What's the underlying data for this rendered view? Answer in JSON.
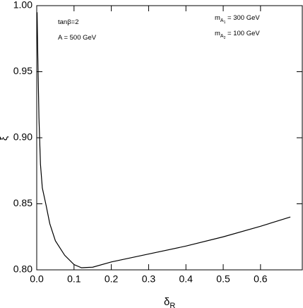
{
  "chart_data": {
    "type": "line",
    "x_label": {
      "main": "δ",
      "sub": "R"
    },
    "y_label": "ξ",
    "annotations": [
      {
        "text": "tanβ=2"
      },
      {
        "text": "A = 500 GeV"
      },
      {
        "main": "m",
        "sub": "A",
        "subsub": "1",
        "rest": " = 300 GeV"
      },
      {
        "main": "m",
        "sub": "A",
        "subsub": "2",
        "rest": " = 100 GeV"
      }
    ],
    "x": [
      0.001,
      0.003,
      0.006,
      0.01,
      0.015,
      0.025,
      0.035,
      0.05,
      0.075,
      0.1,
      0.12,
      0.15,
      0.2,
      0.3,
      0.4,
      0.5,
      0.6,
      0.68
    ],
    "series": [
      {
        "color": "#000000",
        "values": [
          0.995,
          0.96,
          0.915,
          0.88,
          0.862,
          0.849,
          0.835,
          0.822,
          0.811,
          0.804,
          0.8016,
          0.802,
          0.806,
          0.812,
          0.818,
          0.825,
          0.833,
          0.84
        ]
      }
    ],
    "xlim": [
      0,
      0.712
    ],
    "ylim": [
      0.8,
      1.0
    ],
    "xticks": [
      {
        "value": 0,
        "label": "0.0"
      },
      0.1,
      0.2,
      0.3,
      0.4,
      0.5,
      0.6
    ],
    "yticks": [
      {
        "value": 0.8,
        "label": "0.80"
      },
      0.85,
      {
        "value": 0.9,
        "label": "0.90"
      },
      0.95,
      {
        "value": 1.0,
        "label": "1.00"
      }
    ]
  }
}
